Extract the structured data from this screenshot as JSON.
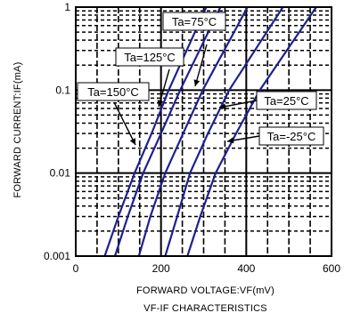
{
  "chart_data": {
    "type": "line",
    "title": "VF-IF CHARACTERISTICS",
    "xlabel": "FORWARD VOLTAGE:VF(mV)",
    "ylabel": "FORWARD CURRENT:IF(mA)",
    "xlim": [
      0,
      600
    ],
    "ylim": [
      0.001,
      1
    ],
    "yscale": "log",
    "grid": true,
    "x_ticks": [
      0,
      200,
      400,
      600
    ],
    "x_tick_labels": [
      "0",
      "200",
      "400",
      "600"
    ],
    "y_ticks": [
      0.001,
      0.01,
      0.1,
      1
    ],
    "y_tick_labels": [
      "0.001",
      "0.01",
      "0.1",
      "1"
    ],
    "series": [
      {
        "name": "Ta=150°C",
        "x": [
          68,
          100,
          138,
          178,
          218,
          260
        ],
        "y": [
          0.001,
          0.003,
          0.01,
          0.03,
          0.1,
          0.3
        ]
      },
      {
        "name": "Ta=125°C",
        "x": [
          92,
          122,
          158,
          200,
          245,
          290
        ],
        "y": [
          0.001,
          0.003,
          0.01,
          0.03,
          0.1,
          0.3
        ]
      },
      {
        "name": "Ta=75°C",
        "x": [
          148,
          175,
          210,
          252,
          298,
          348
        ],
        "y": [
          0.001,
          0.003,
          0.01,
          0.03,
          0.1,
          0.3
        ]
      },
      {
        "name": "Ta=25°C",
        "x": [
          210,
          238,
          268,
          310,
          360,
          420
        ],
        "y": [
          0.001,
          0.003,
          0.01,
          0.03,
          0.1,
          0.3
        ]
      },
      {
        "name": "Ta=-25°C",
        "x": [
          262,
          292,
          328,
          376,
          432,
          495
        ],
        "y": [
          0.001,
          0.003,
          0.01,
          0.03,
          0.1,
          0.3
        ]
      }
    ],
    "annotations": [
      {
        "text": "Ta=75°C",
        "series": "Ta=75°C"
      },
      {
        "text": "Ta=125°C",
        "series": "Ta=125°C"
      },
      {
        "text": "Ta=150°C",
        "series": "Ta=150°C"
      },
      {
        "text": "Ta=25°C",
        "series": "Ta=25°C"
      },
      {
        "text": "Ta=-25°C",
        "series": "Ta=-25°C"
      }
    ],
    "line_color": "#1f1f8f"
  }
}
